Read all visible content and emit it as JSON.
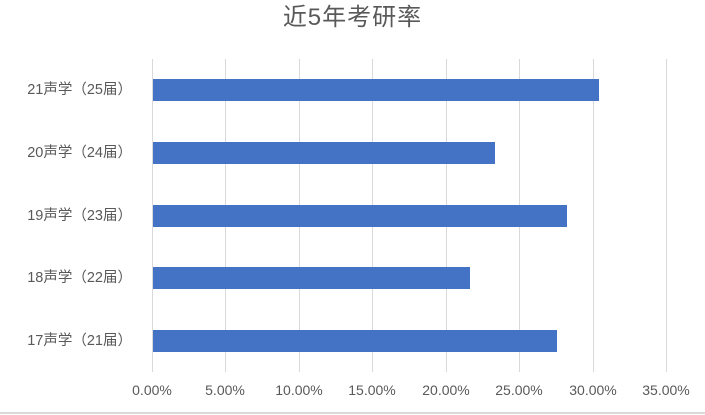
{
  "chart_data": {
    "type": "bar",
    "orientation": "horizontal",
    "title": "近5年考研率",
    "categories": [
      "21声学（25届）",
      "20声学（24届）",
      "19声学（23届）",
      "18声学（22届）",
      "17声学（21届）"
    ],
    "values": [
      30.4,
      23.3,
      28.2,
      21.6,
      27.5
    ],
    "value_unit": "%",
    "x_ticks": [
      {
        "value": 0,
        "label": "0.00%"
      },
      {
        "value": 5,
        "label": "5.00%"
      },
      {
        "value": 10,
        "label": "10.00%"
      },
      {
        "value": 15,
        "label": "15.00%"
      },
      {
        "value": 20,
        "label": "20.00%"
      },
      {
        "value": 25,
        "label": "25.00%"
      },
      {
        "value": 30,
        "label": "30.00%"
      },
      {
        "value": 35,
        "label": "35.00%"
      }
    ],
    "xlim": [
      0,
      35
    ],
    "grid": "vertical-only",
    "legend": "none",
    "xlabel": "",
    "ylabel": "",
    "colors": {
      "bar": "#4472C4",
      "gridline": "#D9D9D9",
      "text": "#595959",
      "background": "#FFFFFF",
      "chart_border": "#D9D9D9"
    }
  }
}
